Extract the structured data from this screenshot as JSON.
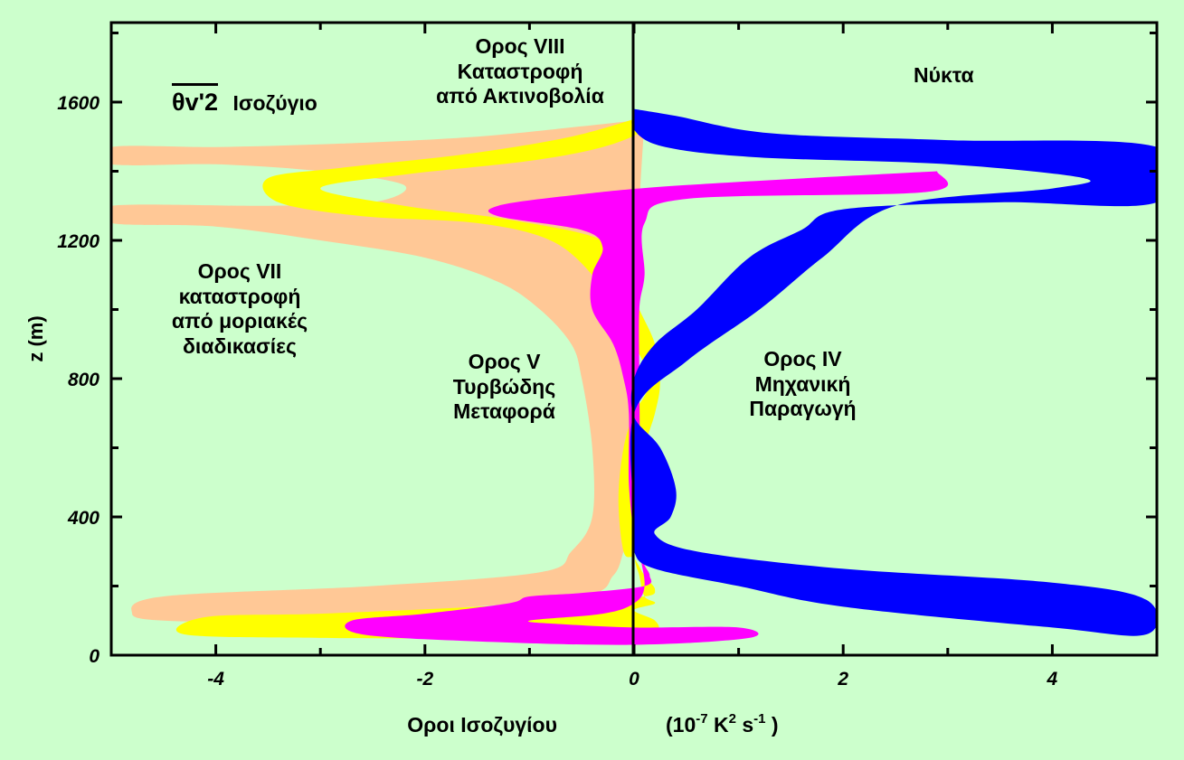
{
  "chart_data": {
    "type": "area",
    "xlabel": "Οροι Ισοζυγίου",
    "xlabel_units": {
      "base": "(10",
      "exp1": "-7",
      "k": " K",
      "exp2": "2",
      "s": " s",
      "exp3": "-1",
      "end": " )"
    },
    "ylabel": "z (m)",
    "xlim": [
      -5,
      5
    ],
    "ylim": [
      0,
      1830
    ],
    "x_ticks": [
      -4,
      -2,
      0,
      2,
      4
    ],
    "x_tick_labels": [
      "-4",
      "-2",
      "0",
      "2",
      "4"
    ],
    "y_ticks": [
      0,
      400,
      800,
      1200,
      1600
    ],
    "y_tick_labels": [
      "0",
      "400",
      "800",
      "1200",
      "1600"
    ],
    "legend_title": {
      "symbol": "θv'2",
      "text": "Ισοζύγιο"
    },
    "annotations": {
      "night": "Νύκτα",
      "term_viii": [
        "Ορος VIII",
        "Καταστροφή",
        "από Ακτινοβολία"
      ],
      "term_vii": [
        "Ορος VII",
        "καταστροφή",
        "από μοριακές",
        "διαδικασίες"
      ],
      "term_v": [
        "Ορος V",
        "Τυρβώδης",
        "Μεταφορά"
      ],
      "term_iv": [
        "Ορος IV",
        "Μηχανική",
        "Παραγωγή"
      ]
    },
    "series": [
      {
        "term": "VII",
        "color": "#ffc896",
        "points": [
          [
            0.1,
            1550
          ],
          [
            -0.5,
            1530
          ],
          [
            -1.5,
            1500
          ],
          [
            -2.8,
            1480
          ],
          [
            -4,
            1470
          ],
          [
            -5,
            1470
          ],
          [
            -5,
            1420
          ],
          [
            -4,
            1420
          ],
          [
            -3,
            1400
          ],
          [
            -2.2,
            1360
          ],
          [
            -2.5,
            1310
          ],
          [
            -3.5,
            1300
          ],
          [
            -5,
            1300
          ],
          [
            -5,
            1250
          ],
          [
            -4,
            1240
          ],
          [
            -3,
            1200
          ],
          [
            -2,
            1150
          ],
          [
            -1.3,
            1080
          ],
          [
            -0.9,
            1000
          ],
          [
            -0.6,
            900
          ],
          [
            -0.5,
            800
          ],
          [
            -0.4,
            600
          ],
          [
            -0.4,
            400
          ],
          [
            -0.6,
            300
          ],
          [
            -0.9,
            240
          ],
          [
            -2.5,
            200
          ],
          [
            -4.5,
            170
          ],
          [
            -4.8,
            120
          ],
          [
            -4.5,
            100
          ],
          [
            -3.5,
            100
          ],
          [
            -2,
            130
          ],
          [
            -0.5,
            170
          ],
          [
            -0.2,
            230
          ],
          [
            -0.1,
            300
          ],
          [
            0,
            400
          ],
          [
            0,
            600
          ],
          [
            0,
            800
          ],
          [
            0,
            1000
          ],
          [
            0.05,
            1300
          ],
          [
            0.1,
            1550
          ]
        ]
      },
      {
        "term": "VIII",
        "color": "#ffff00",
        "points": [
          [
            0.1,
            1560
          ],
          [
            -0.6,
            1500
          ],
          [
            -1.6,
            1450
          ],
          [
            -2.8,
            1410
          ],
          [
            -3.5,
            1380
          ],
          [
            -3.4,
            1310
          ],
          [
            -2.6,
            1270
          ],
          [
            -1.5,
            1250
          ],
          [
            -0.8,
            1200
          ],
          [
            -0.4,
            1100
          ],
          [
            -0.2,
            1000
          ],
          [
            0,
            900
          ],
          [
            0.15,
            800
          ],
          [
            0.1,
            750
          ],
          [
            0,
            700
          ],
          [
            -0.1,
            600
          ],
          [
            -0.15,
            450
          ],
          [
            -0.1,
            300
          ],
          [
            0,
            280
          ],
          [
            0.1,
            230
          ],
          [
            0.2,
            190
          ],
          [
            0.1,
            170
          ],
          [
            -0.5,
            160
          ],
          [
            -1.5,
            140
          ],
          [
            -3,
            120
          ],
          [
            -4.1,
            110
          ],
          [
            -4.3,
            60
          ],
          [
            -3,
            50
          ],
          [
            -1.5,
            50
          ],
          [
            -0.2,
            60
          ],
          [
            0.2,
            70
          ],
          [
            0.2,
            100
          ],
          [
            0,
            130
          ],
          [
            0.2,
            150
          ],
          [
            0.1,
            170
          ],
          [
            0.05,
            230
          ],
          [
            0,
            300
          ],
          [
            0,
            500
          ],
          [
            0.2,
            700
          ],
          [
            0.25,
            800
          ],
          [
            0.2,
            900
          ],
          [
            0.05,
            1000
          ],
          [
            -0.1,
            1100
          ],
          [
            -0.3,
            1200
          ],
          [
            -1.2,
            1260
          ],
          [
            -2.2,
            1300
          ],
          [
            -3,
            1350
          ],
          [
            -2.2,
            1390
          ],
          [
            -1,
            1430
          ],
          [
            -0.3,
            1470
          ],
          [
            0.1,
            1520
          ],
          [
            0.1,
            1560
          ]
        ]
      },
      {
        "term": "V",
        "color": "#ff00ff",
        "points": [
          [
            2.9,
            1400
          ],
          [
            0.5,
            1360
          ],
          [
            -0.6,
            1330
          ],
          [
            -1.3,
            1300
          ],
          [
            -1.3,
            1270
          ],
          [
            -0.5,
            1230
          ],
          [
            -0.3,
            1180
          ],
          [
            -0.4,
            1100
          ],
          [
            -0.4,
            1000
          ],
          [
            -0.2,
            900
          ],
          [
            -0.1,
            800
          ],
          [
            -0.05,
            700
          ],
          [
            -0.05,
            500
          ],
          [
            0,
            350
          ],
          [
            0.05,
            300
          ],
          [
            0.1,
            260
          ],
          [
            0.15,
            230
          ],
          [
            0.1,
            200
          ],
          [
            -0.5,
            180
          ],
          [
            -1,
            170
          ],
          [
            -1.2,
            150
          ],
          [
            -2,
            120
          ],
          [
            -2.7,
            100
          ],
          [
            -2.6,
            60
          ],
          [
            -1.5,
            40
          ],
          [
            0,
            30
          ],
          [
            1.1,
            50
          ],
          [
            1,
            80
          ],
          [
            0,
            80
          ],
          [
            -0.7,
            90
          ],
          [
            -1,
            100
          ],
          [
            -0.3,
            120
          ],
          [
            0,
            150
          ],
          [
            0.1,
            200
          ],
          [
            0.05,
            300
          ],
          [
            0,
            400
          ],
          [
            0.05,
            600
          ],
          [
            0.05,
            800
          ],
          [
            0.05,
            1000
          ],
          [
            0.1,
            1100
          ],
          [
            0.1,
            1250
          ],
          [
            0.5,
            1320
          ],
          [
            2.8,
            1340
          ],
          [
            2.9,
            1400
          ]
        ]
      },
      {
        "term": "IV",
        "color": "#0000ff",
        "points": [
          [
            0,
            1580
          ],
          [
            0.4,
            1560
          ],
          [
            1.3,
            1510
          ],
          [
            3,
            1490
          ],
          [
            5,
            1470
          ],
          [
            5,
            1310
          ],
          [
            3.5,
            1310
          ],
          [
            2,
            1290
          ],
          [
            1.6,
            1230
          ],
          [
            1.1,
            1150
          ],
          [
            0.6,
            1000
          ],
          [
            0.2,
            900
          ],
          [
            0,
            800
          ],
          [
            0,
            690
          ],
          [
            0.25,
            600
          ],
          [
            0.4,
            480
          ],
          [
            0.35,
            400
          ],
          [
            0.2,
            350
          ],
          [
            0.6,
            300
          ],
          [
            2,
            250
          ],
          [
            4,
            210
          ],
          [
            4.9,
            160
          ],
          [
            4.9,
            60
          ],
          [
            4,
            80
          ],
          [
            2,
            140
          ],
          [
            1,
            200
          ],
          [
            0.2,
            250
          ],
          [
            0,
            300
          ],
          [
            0,
            400
          ],
          [
            0,
            700
          ],
          [
            0.5,
            850
          ],
          [
            1.2,
            1000
          ],
          [
            1.8,
            1150
          ],
          [
            2.5,
            1300
          ],
          [
            4,
            1350
          ],
          [
            4.3,
            1380
          ],
          [
            3,
            1420
          ],
          [
            1.2,
            1440
          ],
          [
            0.3,
            1470
          ],
          [
            0,
            1520
          ],
          [
            0,
            1580
          ]
        ]
      }
    ]
  },
  "colors": {
    "background": "#ccffcc",
    "plot_area": "#ccffcc",
    "axes": "#000000"
  }
}
